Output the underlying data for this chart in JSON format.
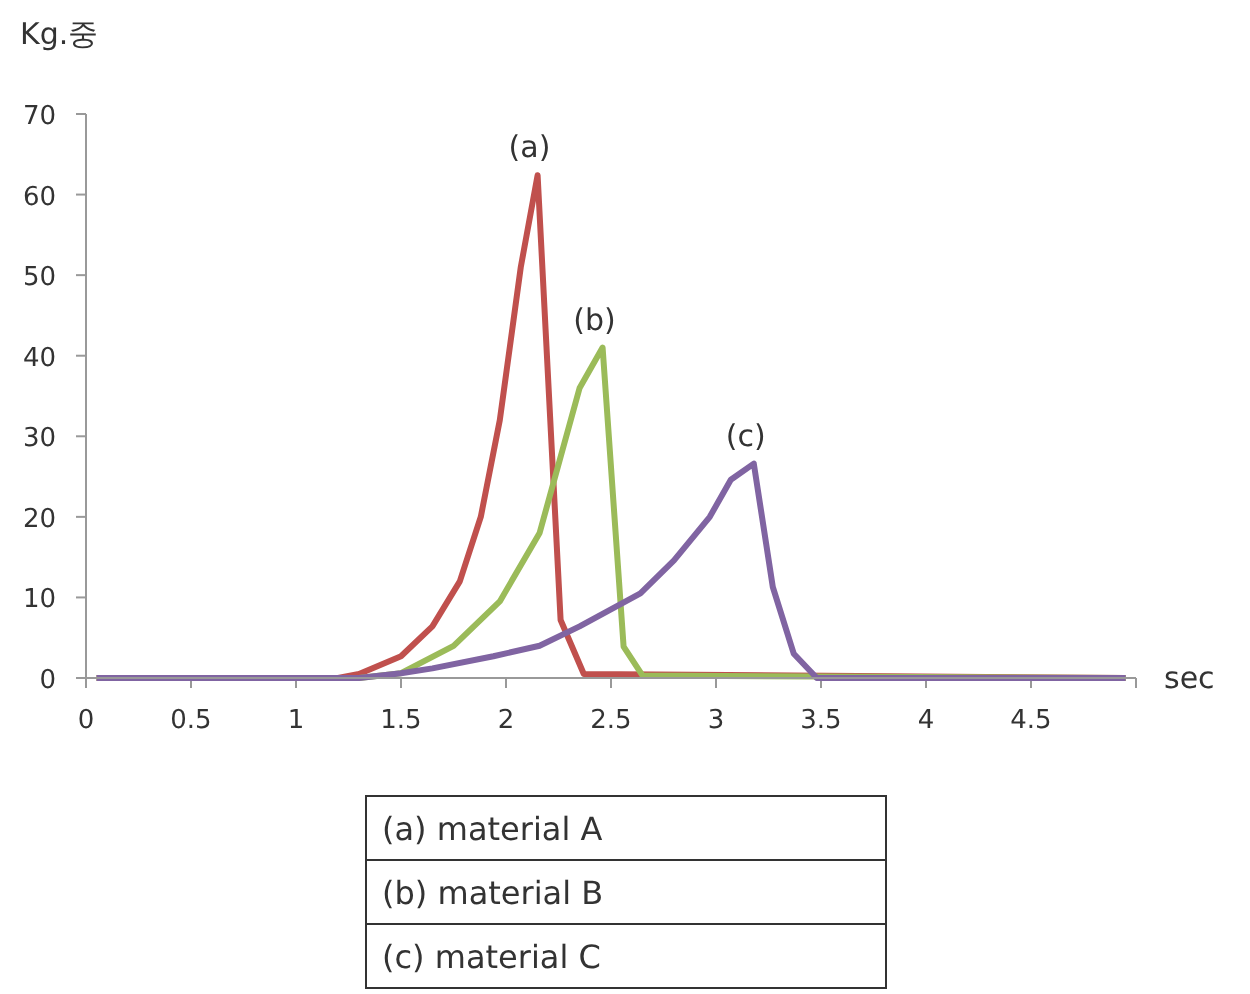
{
  "chart_data": {
    "type": "line",
    "ylabel": "Kg.중",
    "xlabel": "sec",
    "xlim": [
      0,
      5
    ],
    "ylim": [
      0,
      70
    ],
    "xticks": [
      0,
      0.5,
      1,
      1.5,
      2,
      2.5,
      3,
      3.5,
      4,
      4.5,
      {
        "value": 5,
        "label": null
      }
    ],
    "yticks": [
      0,
      10,
      20,
      30,
      40,
      50,
      60,
      70
    ],
    "series": [
      {
        "name": "(a)",
        "color": "#c0504d",
        "x": [
          0.05,
          1.2,
          1.3,
          1.5,
          1.65,
          1.78,
          1.88,
          1.97,
          2.07,
          2.15,
          2.26,
          2.37,
          4.95
        ],
        "values": [
          0,
          0,
          0.5,
          2.7,
          6.4,
          12,
          20,
          32,
          51,
          62.4,
          7.2,
          0.5,
          0
        ]
      },
      {
        "name": "(b)",
        "color": "#9bbb59",
        "x": [
          0.05,
          1.3,
          1.5,
          1.75,
          1.97,
          2.16,
          2.35,
          2.46,
          2.56,
          2.65,
          4.95
        ],
        "values": [
          0,
          0,
          0.6,
          4,
          9.5,
          18,
          36,
          41,
          3.9,
          0.3,
          0
        ]
      },
      {
        "name": "(c)",
        "color": "#8064a2",
        "x": [
          0.05,
          1.3,
          1.5,
          1.65,
          1.94,
          2.16,
          2.35,
          2.64,
          2.8,
          2.97,
          3.07,
          3.18,
          3.27,
          3.37,
          3.48,
          4.95
        ],
        "values": [
          0,
          0,
          0.6,
          1.2,
          2.7,
          4,
          6.4,
          10.5,
          14.6,
          20,
          24.6,
          26.6,
          11.3,
          3,
          0,
          0
        ]
      }
    ],
    "annotations": [
      "(a)  material A",
      "(b)  material B",
      "(c)  material C"
    ]
  }
}
